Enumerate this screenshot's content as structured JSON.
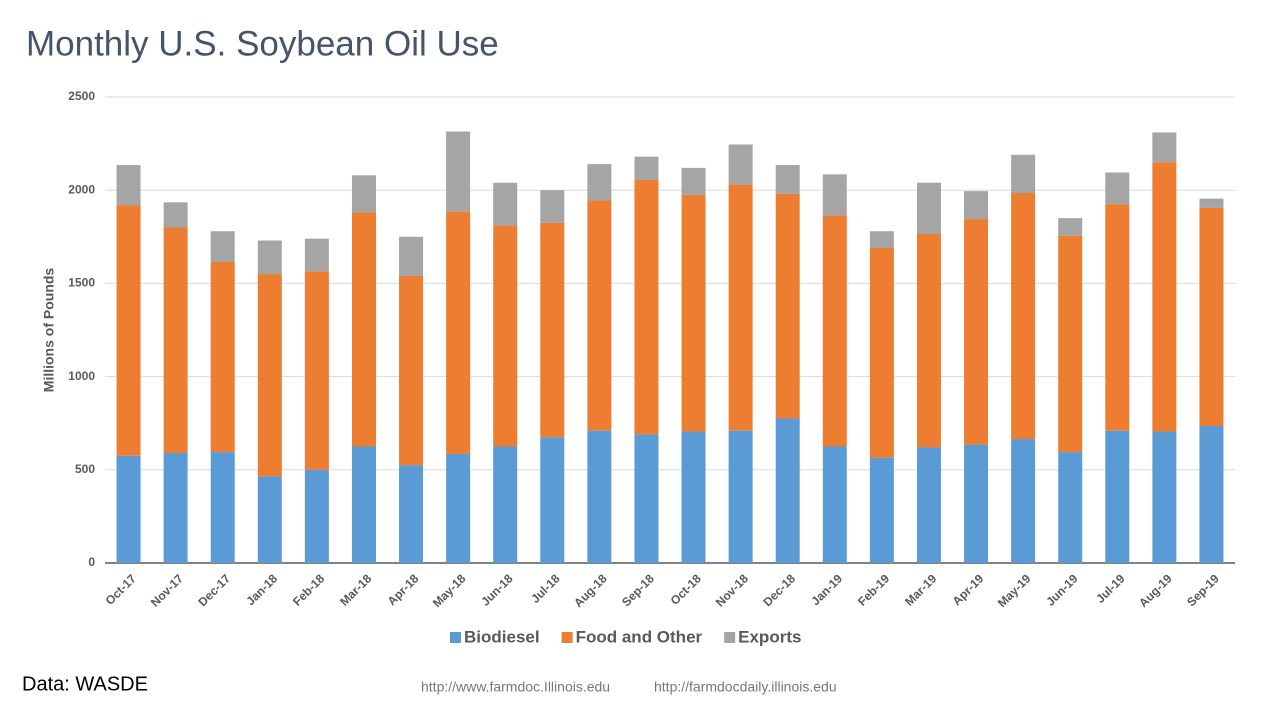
{
  "chart_data": {
    "type": "stacked_bar",
    "title": "Monthly U.S. Soybean Oil Use",
    "y_label": "Millions of Pounds",
    "categories": [
      "Oct-17",
      "Nov-17",
      "Dec-17",
      "Jan-18",
      "Feb-18",
      "Mar-18",
      "Apr-18",
      "May-18",
      "Jun-18",
      "Jul-18",
      "Aug-18",
      "Sep-18",
      "Oct-18",
      "Nov-18",
      "Dec-18",
      "Jan-19",
      "Feb-19",
      "Mar-19",
      "Apr-19",
      "May-19",
      "Jun-19",
      "Jul-19",
      "Aug-19",
      "Sep-19"
    ],
    "series": [
      {
        "name": "Biodiesel",
        "color": "#5b9bd5",
        "values": [
          575,
          590,
          595,
          465,
          500,
          625,
          525,
          585,
          625,
          675,
          710,
          690,
          705,
          710,
          775,
          625,
          565,
          620,
          635,
          665,
          595,
          710,
          705,
          735
        ]
      },
      {
        "name": "Food and Other",
        "color": "#ed7d31",
        "values": [
          1345,
          1210,
          1020,
          1085,
          1065,
          1255,
          1015,
          1300,
          1185,
          1150,
          1235,
          1365,
          1270,
          1320,
          1205,
          1240,
          1125,
          1145,
          1210,
          1320,
          1160,
          1215,
          1445,
          1170
        ]
      },
      {
        "name": "Exports",
        "color": "#a5a5a5",
        "values": [
          215,
          135,
          165,
          180,
          175,
          200,
          210,
          430,
          230,
          175,
          195,
          125,
          145,
          215,
          155,
          220,
          90,
          275,
          150,
          205,
          95,
          170,
          160,
          50
        ]
      }
    ],
    "ylim": [
      0,
      2500
    ],
    "yticks": [
      0,
      500,
      1000,
      1500,
      2000,
      2500
    ],
    "grid": true,
    "legend": "bottom"
  },
  "footer": {
    "source": "Data: WASDE",
    "links": [
      "http://www.farmdoc.Illinois.edu",
      "http://farmdocdaily.illinois.edu"
    ]
  }
}
